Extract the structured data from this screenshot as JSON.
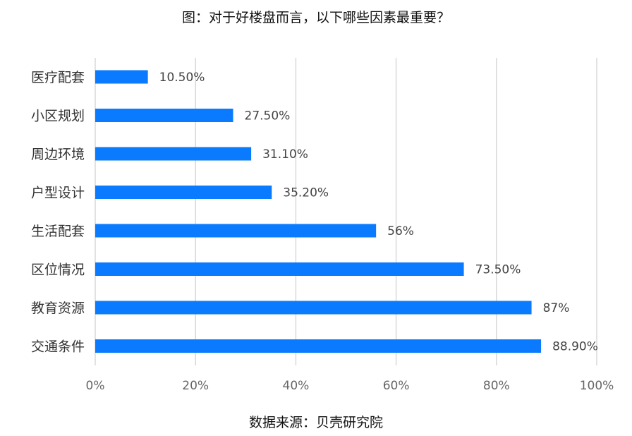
{
  "chart_data": {
    "type": "bar",
    "orientation": "horizontal",
    "title": "图：对于好楼盘而言，以下哪些因素最重要？",
    "source": "数据来源：贝壳研究院",
    "categories": [
      "医疗配套",
      "小区规划",
      "周边环境",
      "户型设计",
      "生活配套",
      "区位情况",
      "教育资源",
      "交通条件"
    ],
    "values": [
      10.5,
      27.5,
      31.1,
      35.2,
      56,
      73.5,
      87,
      88.9
    ],
    "value_labels": [
      "10.50%",
      "27.50%",
      "31.10%",
      "35.20%",
      "56%",
      "73.50%",
      "87%",
      "88.90%"
    ],
    "x_ticks": [
      "0%",
      "20%",
      "40%",
      "60%",
      "80%",
      "100%"
    ],
    "xlim": [
      0,
      100
    ],
    "grid": "vertical",
    "bar_color": "#0a7bff"
  }
}
